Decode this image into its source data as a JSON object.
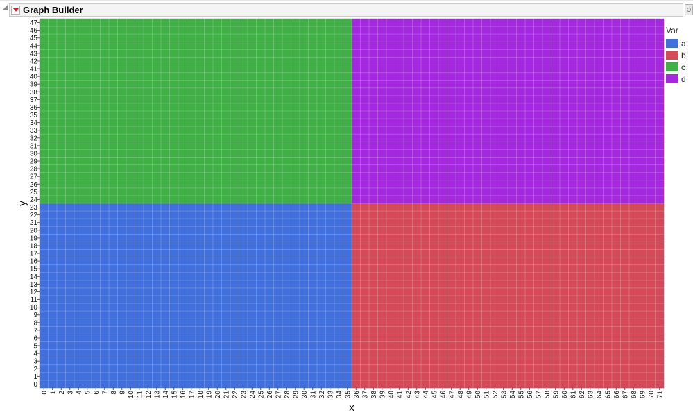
{
  "window": {
    "title": "Graph Builder"
  },
  "chart_data": {
    "type": "heatmap",
    "title": "",
    "xlabel": "x",
    "ylabel": "y",
    "x": [
      0,
      1,
      2,
      3,
      4,
      5,
      6,
      7,
      8,
      9,
      10,
      11,
      12,
      13,
      14,
      15,
      16,
      17,
      18,
      19,
      20,
      21,
      22,
      23,
      24,
      25,
      26,
      27,
      28,
      29,
      30,
      31,
      32,
      33,
      34,
      35,
      36,
      37,
      38,
      39,
      40,
      41,
      42,
      43,
      44,
      45,
      46,
      47,
      48,
      49,
      50,
      51,
      52,
      53,
      54,
      55,
      56,
      57,
      58,
      59,
      60,
      61,
      62,
      63,
      64,
      65,
      66,
      67,
      68,
      69,
      70,
      71
    ],
    "y": [
      0,
      1,
      2,
      3,
      4,
      5,
      6,
      7,
      8,
      9,
      10,
      11,
      12,
      13,
      14,
      15,
      16,
      17,
      18,
      19,
      20,
      21,
      22,
      23,
      24,
      25,
      26,
      27,
      28,
      29,
      30,
      31,
      32,
      33,
      34,
      35,
      36,
      37,
      38,
      39,
      40,
      41,
      42,
      43,
      44,
      45,
      46,
      47
    ],
    "regions": [
      {
        "var": "a",
        "x_range": [
          0,
          35
        ],
        "y_range": [
          0,
          23
        ]
      },
      {
        "var": "b",
        "x_range": [
          36,
          71
        ],
        "y_range": [
          0,
          23
        ]
      },
      {
        "var": "c",
        "x_range": [
          0,
          35
        ],
        "y_range": [
          24,
          47
        ]
      },
      {
        "var": "d",
        "x_range": [
          36,
          71
        ],
        "y_range": [
          24,
          47
        ]
      }
    ],
    "legend": {
      "title": "Var",
      "position": "right",
      "items": [
        {
          "label": "a",
          "color": "#416fdc"
        },
        {
          "label": "b",
          "color": "#d44a58"
        },
        {
          "label": "c",
          "color": "#3faf46"
        },
        {
          "label": "d",
          "color": "#a429de"
        }
      ]
    },
    "grid": true
  }
}
